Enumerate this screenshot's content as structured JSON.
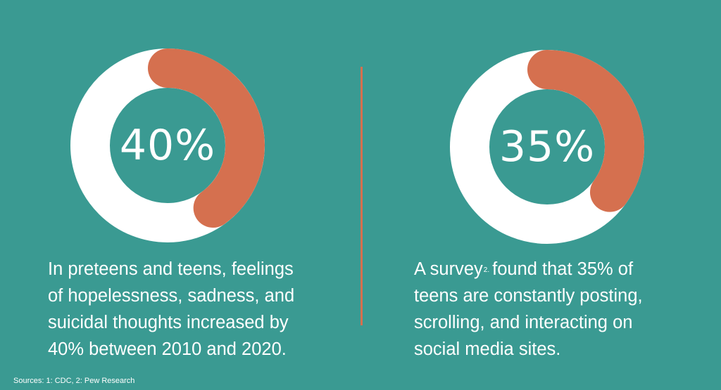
{
  "colors": {
    "background": "#3a9a92",
    "ring": "#ffffff",
    "accent": "#d5704f",
    "text": "#ffffff"
  },
  "stats": [
    {
      "value": 40,
      "label": "40%",
      "caption_lines": [
        "In preteens and teens, feelings",
        "of hopelessness, sadness, and",
        "suicidal thoughts increased by",
        "40% between 2010 and 2020."
      ]
    },
    {
      "value": 35,
      "label": "35%",
      "caption_prefix": "A survey",
      "caption_footnote": "2.",
      "caption_first_line_rest": "found that 35% of",
      "caption_lines": [
        "teens are constantly posting,",
        "scrolling, and interacting on",
        "social media sites."
      ]
    }
  ],
  "sources": "Sources: 1: CDC, 2:  Pew Research"
}
